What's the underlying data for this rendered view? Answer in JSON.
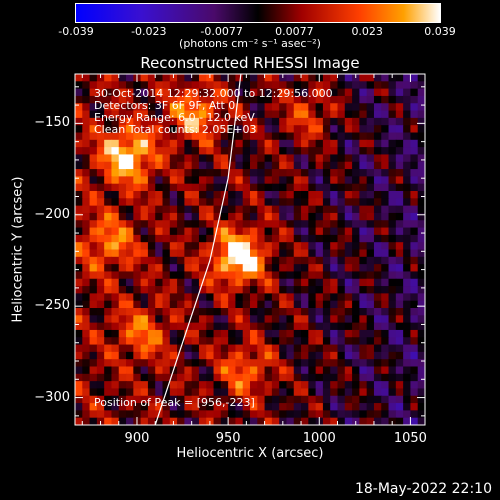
{
  "colorbar": {
    "ticks": [
      "-0.039",
      "-0.023",
      "-0.0077",
      "0.0077",
      "0.023",
      "0.039"
    ],
    "units": "(photons cm⁻² s⁻¹ asec⁻²)"
  },
  "title": "Reconstructed RHESSI Image",
  "info": {
    "time": "30-Oct-2014 12:29:32.000 to 12:29:56.000",
    "detectors": "Detectors: 3F 6F 9F, Att 0",
    "energy": "Energy Range: 6.0 - 12.0 keV",
    "clean": "Clean     Total counts: 2.05E+03",
    "peak": "Position of Peak = [956,-223]"
  },
  "timestamp": "18-May-2022 22:10",
  "colors": {
    "background": "#000000",
    "text": "#ffffff",
    "limb_line": "#ffffff"
  },
  "chart_data": {
    "type": "heatmap",
    "title": "Reconstructed RHESSI Image",
    "xlabel": "Heliocentric X (arcsec)",
    "ylabel": "Heliocentric Y (arcsec)",
    "xlim": [
      866,
      1058
    ],
    "ylim": [
      -315,
      -123
    ],
    "xticks": [
      900,
      950,
      1000,
      1050
    ],
    "yticks": [
      -150,
      -200,
      -250,
      -300
    ],
    "colorbar_range": [
      -0.039,
      0.039
    ],
    "peak": [
      956,
      -223
    ],
    "limb_curve": [
      [
        910,
        -315
      ],
      [
        925,
        -270
      ],
      [
        940,
        -225
      ],
      [
        950,
        -180
      ],
      [
        957,
        -123
      ]
    ],
    "hotspots": [
      {
        "x": 956,
        "y": -223,
        "value": 0.039
      },
      {
        "x": 895,
        "y": -168,
        "value": 0.033
      },
      {
        "x": 932,
        "y": -145,
        "value": 0.024
      },
      {
        "x": 903,
        "y": -265,
        "value": 0.018
      },
      {
        "x": 960,
        "y": -285,
        "value": 0.02
      },
      {
        "x": 995,
        "y": -145,
        "value": 0.016
      },
      {
        "x": 885,
        "y": -215,
        "value": 0.02
      }
    ]
  }
}
